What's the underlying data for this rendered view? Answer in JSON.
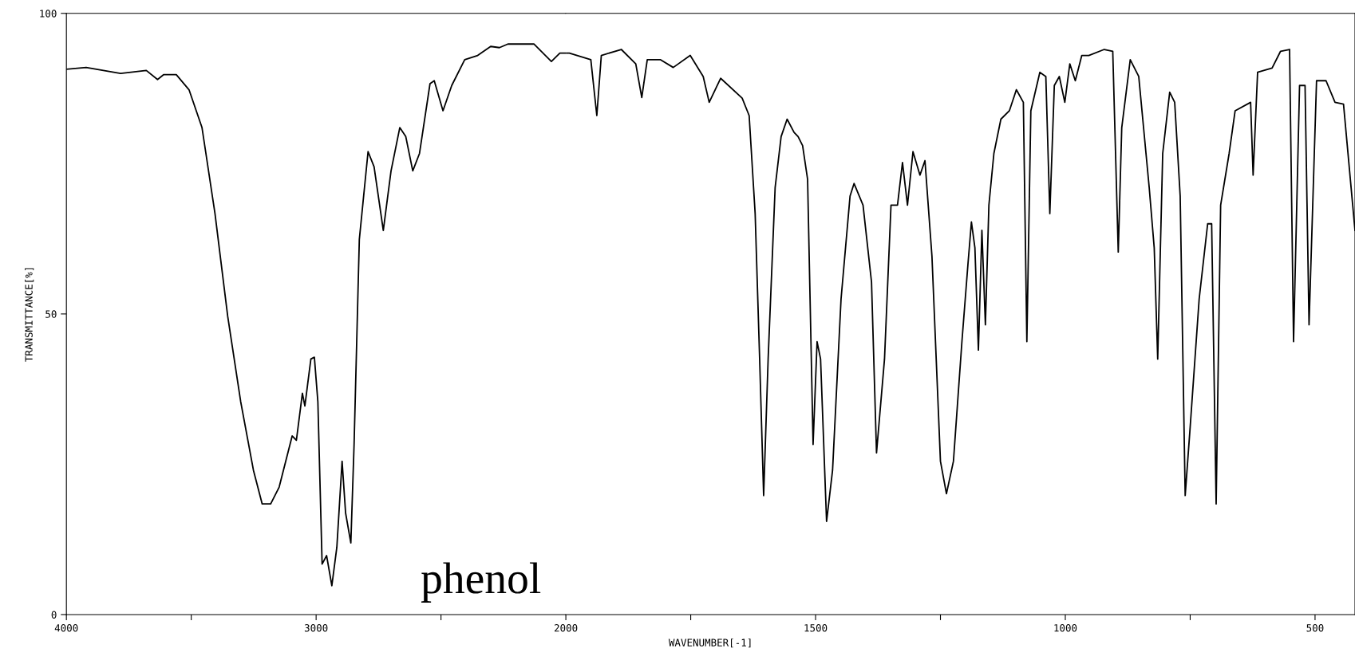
{
  "chart_data": [
    {
      "type": "line",
      "ylabel": "TRANSMITTANCE[%]",
      "annotations": [
        "phenol"
      ],
      "xlim": [
        4000,
        2000
      ],
      "ylim": [
        0,
        100
      ],
      "xticks": [
        4000,
        {
          "value": 3500,
          "label": null
        },
        3000,
        {
          "value": 2500,
          "label": null
        }
      ],
      "yticks": [
        0,
        50,
        100
      ],
      "grid": false,
      "series": [
        {
          "color": "#000000",
          "x": [
            4000,
            3921,
            3783,
            3680,
            3635,
            3611,
            3560,
            3509,
            3457,
            3405,
            3354,
            3302,
            3251,
            3216,
            3182,
            3148,
            3096,
            3079,
            3055,
            3045,
            3034,
            3021,
            3007,
            2993,
            2976,
            2958,
            2937,
            2917,
            2896,
            2882,
            2861,
            2848,
            2827,
            2792,
            2768,
            2731,
            2700,
            2665,
            2641,
            2613,
            2586,
            2544,
            2527,
            2492,
            2457,
            2405,
            2353,
            2301,
            2266,
            2232,
            2128,
            2058,
            2024,
            2000
          ],
          "values": [
            90.7,
            91,
            90,
            90.5,
            89,
            89.8,
            89.8,
            87.3,
            81,
            66.7,
            49.6,
            35.4,
            24,
            18.4,
            18.4,
            21.2,
            29.7,
            29,
            36.8,
            34.7,
            38.3,
            42.5,
            42.8,
            35.4,
            8.4,
            9.8,
            4.8,
            11.2,
            25.5,
            16.9,
            11.9,
            28.3,
            62.4,
            77,
            74.5,
            63.9,
            73.8,
            81,
            79.5,
            73.8,
            76.7,
            88.3,
            88.8,
            83.8,
            88,
            92.3,
            93,
            94.5,
            94.3,
            94.9,
            94.9,
            92,
            93.4,
            93.4
          ]
        }
      ]
    },
    {
      "type": "line",
      "xlabel": "WAVENUMBER[-1]",
      "tick_labels": "x",
      "xlim": [
        2000,
        420
      ],
      "ylim": [
        0,
        100
      ],
      "xticks": [
        2000,
        {
          "value": 1750,
          "label": null
        },
        1500,
        {
          "value": 1250,
          "label": null
        },
        1000,
        {
          "value": 750,
          "label": null
        },
        500
      ],
      "grid": false,
      "series": [
        {
          "color": "#000000",
          "x": [
            2000,
            1993,
            1950,
            1938,
            1929,
            1889,
            1860,
            1848,
            1837,
            1811,
            1785,
            1751,
            1725,
            1713,
            1690,
            1647,
            1633,
            1621,
            1612,
            1604,
            1595,
            1581,
            1569,
            1557,
            1543,
            1535,
            1526,
            1516,
            1505,
            1497,
            1490,
            1478,
            1466,
            1449,
            1431,
            1423,
            1405,
            1388,
            1378,
            1362,
            1349,
            1336,
            1326,
            1316,
            1305,
            1291,
            1281,
            1267,
            1250,
            1238,
            1224,
            1207,
            1195,
            1188,
            1181,
            1174,
            1167,
            1160,
            1153,
            1143,
            1129,
            1112,
            1098,
            1084,
            1077,
            1069,
            1051,
            1039,
            1031,
            1022,
            1012,
            1001,
            991,
            980,
            967,
            953,
            922,
            905,
            894,
            887,
            870,
            853,
            832,
            822,
            815,
            805,
            791,
            781,
            770,
            760,
            750,
            732,
            715,
            707,
            698,
            689,
            672,
            660,
            629,
            624,
            615,
            586,
            569,
            551,
            543,
            531,
            520,
            512,
            497,
            478,
            460,
            443,
            420
          ],
          "values": [
            93.4,
            93.4,
            92.3,
            83,
            93,
            94,
            91.6,
            86,
            92.3,
            92.3,
            91,
            93,
            89.5,
            85.2,
            89.2,
            85.9,
            83,
            66.7,
            42.5,
            19.8,
            42.5,
            71,
            79.5,
            82.4,
            80.2,
            79.5,
            78,
            72.4,
            28.3,
            45.4,
            42.5,
            15.5,
            24,
            52.5,
            69.6,
            71.7,
            68.1,
            55.3,
            26.9,
            42.5,
            68.1,
            68.1,
            75.2,
            68.1,
            77,
            73.1,
            75.5,
            59.6,
            25.5,
            20.1,
            25.5,
            45.4,
            58.2,
            65.3,
            61,
            44,
            63.9,
            48.2,
            68.1,
            76.7,
            82.4,
            83.8,
            87.3,
            85.2,
            45.4,
            83.8,
            90.2,
            89.5,
            66.7,
            88,
            89.5,
            85.2,
            91.6,
            88.8,
            93,
            93,
            94,
            93.7,
            60.3,
            81,
            92.3,
            89.5,
            71,
            61,
            42.5,
            76.7,
            86.9,
            85.2,
            69.6,
            19.8,
            31.2,
            52.5,
            65,
            65,
            18.4,
            68.1,
            76.7,
            83.8,
            85.2,
            73.1,
            90.2,
            90.9,
            93.7,
            94,
            45.4,
            88,
            88,
            48.2,
            88.8,
            88.8,
            85.2,
            84.9,
            63.9
          ]
        }
      ]
    }
  ]
}
